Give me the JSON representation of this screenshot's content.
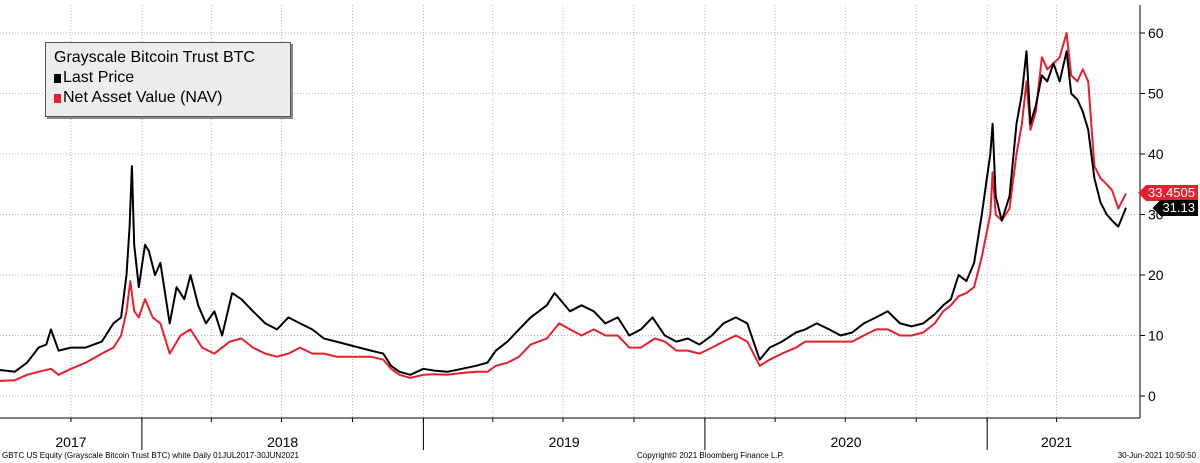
{
  "chart_data": {
    "type": "line",
    "title": "Grayscale Bitcoin Trust BTC",
    "ylim": [
      -4,
      65
    ],
    "y_ticks": [
      0,
      10,
      20,
      30,
      40,
      50,
      60
    ],
    "y_tick_labels": [
      "0",
      "10",
      "20",
      "30",
      "40",
      "50",
      "60"
    ],
    "x_range": [
      "2017-07-01",
      "2021-06-30"
    ],
    "x_tick_labels": [
      "2017",
      "2018",
      "2019",
      "2020",
      "2021"
    ],
    "grid": true,
    "legend_position": "top-left",
    "series": [
      {
        "name": "Last Price",
        "color": "#000000",
        "last_value_label": "31.13",
        "points": [
          [
            "2017-07-01",
            4.3
          ],
          [
            "2017-07-20",
            4.0
          ],
          [
            "2017-08-05",
            5.5
          ],
          [
            "2017-08-20",
            8.0
          ],
          [
            "2017-08-30",
            8.5
          ],
          [
            "2017-09-05",
            11.0
          ],
          [
            "2017-09-15",
            7.5
          ],
          [
            "2017-10-01",
            8.0
          ],
          [
            "2017-10-20",
            8.0
          ],
          [
            "2017-11-10",
            9.0
          ],
          [
            "2017-11-25",
            12.0
          ],
          [
            "2017-12-05",
            13.0
          ],
          [
            "2017-12-12",
            20.0
          ],
          [
            "2017-12-16",
            28.0
          ],
          [
            "2017-12-19",
            38.0
          ],
          [
            "2017-12-22",
            25.0
          ],
          [
            "2017-12-28",
            18.0
          ],
          [
            "2018-01-05",
            25.0
          ],
          [
            "2018-01-10",
            24.0
          ],
          [
            "2018-01-18",
            20.0
          ],
          [
            "2018-01-25",
            22.0
          ],
          [
            "2018-02-06",
            12.0
          ],
          [
            "2018-02-15",
            18.0
          ],
          [
            "2018-02-25",
            16.0
          ],
          [
            "2018-03-05",
            20.0
          ],
          [
            "2018-03-15",
            15.0
          ],
          [
            "2018-03-25",
            12.0
          ],
          [
            "2018-04-05",
            14.0
          ],
          [
            "2018-04-15",
            10.0
          ],
          [
            "2018-04-28",
            17.0
          ],
          [
            "2018-05-10",
            16.0
          ],
          [
            "2018-05-25",
            14.0
          ],
          [
            "2018-06-10",
            12.0
          ],
          [
            "2018-06-25",
            11.0
          ],
          [
            "2018-07-10",
            13.0
          ],
          [
            "2018-07-25",
            12.0
          ],
          [
            "2018-08-10",
            11.0
          ],
          [
            "2018-08-25",
            9.5
          ],
          [
            "2018-09-10",
            9.0
          ],
          [
            "2018-09-25",
            8.5
          ],
          [
            "2018-10-10",
            8.0
          ],
          [
            "2018-10-25",
            7.5
          ],
          [
            "2018-11-10",
            7.0
          ],
          [
            "2018-11-20",
            5.0
          ],
          [
            "2018-12-01",
            4.0
          ],
          [
            "2018-12-15",
            3.5
          ],
          [
            "2019-01-01",
            4.5
          ],
          [
            "2019-01-15",
            4.2
          ],
          [
            "2019-02-01",
            4.0
          ],
          [
            "2019-02-20",
            4.5
          ],
          [
            "2019-03-10",
            5.0
          ],
          [
            "2019-03-25",
            5.5
          ],
          [
            "2019-04-05",
            7.5
          ],
          [
            "2019-04-20",
            9.0
          ],
          [
            "2019-05-05",
            11.0
          ],
          [
            "2019-05-20",
            13.0
          ],
          [
            "2019-06-10",
            15.0
          ],
          [
            "2019-06-20",
            17.0
          ],
          [
            "2019-06-27",
            16.0
          ],
          [
            "2019-07-10",
            14.0
          ],
          [
            "2019-07-25",
            15.0
          ],
          [
            "2019-08-10",
            14.0
          ],
          [
            "2019-08-25",
            12.0
          ],
          [
            "2019-09-10",
            13.0
          ],
          [
            "2019-09-25",
            10.0
          ],
          [
            "2019-10-10",
            11.0
          ],
          [
            "2019-10-25",
            13.0
          ],
          [
            "2019-11-10",
            10.0
          ],
          [
            "2019-11-25",
            9.0
          ],
          [
            "2019-12-10",
            9.5
          ],
          [
            "2019-12-25",
            8.5
          ],
          [
            "2020-01-10",
            10.0
          ],
          [
            "2020-01-25",
            12.0
          ],
          [
            "2020-02-10",
            13.0
          ],
          [
            "2020-02-25",
            12.0
          ],
          [
            "2020-03-12",
            6.0
          ],
          [
            "2020-03-25",
            8.0
          ],
          [
            "2020-04-10",
            9.0
          ],
          [
            "2020-04-28",
            10.5
          ],
          [
            "2020-05-10",
            11.0
          ],
          [
            "2020-05-25",
            12.0
          ],
          [
            "2020-06-10",
            11.0
          ],
          [
            "2020-06-25",
            10.0
          ],
          [
            "2020-07-10",
            10.5
          ],
          [
            "2020-07-25",
            12.0
          ],
          [
            "2020-08-10",
            13.0
          ],
          [
            "2020-08-25",
            14.0
          ],
          [
            "2020-09-10",
            12.0
          ],
          [
            "2020-09-25",
            11.5
          ],
          [
            "2020-10-10",
            12.0
          ],
          [
            "2020-10-25",
            13.5
          ],
          [
            "2020-11-05",
            15.0
          ],
          [
            "2020-11-15",
            16.0
          ],
          [
            "2020-11-25",
            20.0
          ],
          [
            "2020-12-05",
            19.0
          ],
          [
            "2020-12-15",
            22.0
          ],
          [
            "2020-12-25",
            30.0
          ],
          [
            "2021-01-05",
            40.0
          ],
          [
            "2021-01-08",
            45.0
          ],
          [
            "2021-01-12",
            33.0
          ],
          [
            "2021-01-20",
            29.0
          ],
          [
            "2021-01-30",
            33.0
          ],
          [
            "2021-02-08",
            45.0
          ],
          [
            "2021-02-15",
            50.0
          ],
          [
            "2021-02-21",
            57.0
          ],
          [
            "2021-02-26",
            45.0
          ],
          [
            "2021-03-05",
            48.0
          ],
          [
            "2021-03-13",
            53.0
          ],
          [
            "2021-03-20",
            52.0
          ],
          [
            "2021-03-28",
            55.0
          ],
          [
            "2021-04-05",
            52.0
          ],
          [
            "2021-04-14",
            57.0
          ],
          [
            "2021-04-20",
            50.0
          ],
          [
            "2021-04-28",
            49.0
          ],
          [
            "2021-05-05",
            47.0
          ],
          [
            "2021-05-12",
            44.0
          ],
          [
            "2021-05-20",
            36.0
          ],
          [
            "2021-05-28",
            32.0
          ],
          [
            "2021-06-05",
            30.0
          ],
          [
            "2021-06-12",
            29.0
          ],
          [
            "2021-06-20",
            28.0
          ],
          [
            "2021-06-30",
            31.13
          ]
        ]
      },
      {
        "name": "Net Asset Value (NAV)",
        "color": "#e8202e",
        "last_value_label": "33.4505",
        "points": [
          [
            "2017-07-01",
            2.5
          ],
          [
            "2017-07-20",
            2.6
          ],
          [
            "2017-08-05",
            3.5
          ],
          [
            "2017-08-20",
            4.0
          ],
          [
            "2017-09-05",
            4.5
          ],
          [
            "2017-09-15",
            3.5
          ],
          [
            "2017-10-01",
            4.5
          ],
          [
            "2017-10-20",
            5.5
          ],
          [
            "2017-11-10",
            7.0
          ],
          [
            "2017-11-25",
            8.0
          ],
          [
            "2017-12-05",
            10.0
          ],
          [
            "2017-12-12",
            14.0
          ],
          [
            "2017-12-17",
            19.0
          ],
          [
            "2017-12-22",
            14.0
          ],
          [
            "2017-12-28",
            13.0
          ],
          [
            "2018-01-05",
            16.0
          ],
          [
            "2018-01-15",
            13.0
          ],
          [
            "2018-01-25",
            12.0
          ],
          [
            "2018-02-06",
            7.0
          ],
          [
            "2018-02-20",
            10.0
          ],
          [
            "2018-03-05",
            11.0
          ],
          [
            "2018-03-20",
            8.0
          ],
          [
            "2018-04-05",
            7.0
          ],
          [
            "2018-04-25",
            9.0
          ],
          [
            "2018-05-10",
            9.5
          ],
          [
            "2018-05-25",
            8.0
          ],
          [
            "2018-06-10",
            7.0
          ],
          [
            "2018-06-25",
            6.5
          ],
          [
            "2018-07-10",
            7.0
          ],
          [
            "2018-07-25",
            8.0
          ],
          [
            "2018-08-10",
            7.0
          ],
          [
            "2018-08-25",
            7.0
          ],
          [
            "2018-09-10",
            6.5
          ],
          [
            "2018-09-25",
            6.5
          ],
          [
            "2018-10-10",
            6.5
          ],
          [
            "2018-10-25",
            6.5
          ],
          [
            "2018-11-10",
            6.0
          ],
          [
            "2018-11-20",
            4.5
          ],
          [
            "2018-12-01",
            3.5
          ],
          [
            "2018-12-15",
            3.0
          ],
          [
            "2019-01-01",
            3.5
          ],
          [
            "2019-01-15",
            3.6
          ],
          [
            "2019-02-01",
            3.5
          ],
          [
            "2019-02-20",
            3.8
          ],
          [
            "2019-03-10",
            4.0
          ],
          [
            "2019-03-25",
            4.0
          ],
          [
            "2019-04-05",
            5.0
          ],
          [
            "2019-04-20",
            5.5
          ],
          [
            "2019-05-05",
            6.5
          ],
          [
            "2019-05-20",
            8.5
          ],
          [
            "2019-06-10",
            9.5
          ],
          [
            "2019-06-26",
            12.0
          ],
          [
            "2019-07-10",
            11.0
          ],
          [
            "2019-07-25",
            10.0
          ],
          [
            "2019-08-10",
            11.0
          ],
          [
            "2019-08-25",
            10.0
          ],
          [
            "2019-09-10",
            10.0
          ],
          [
            "2019-09-25",
            8.0
          ],
          [
            "2019-10-10",
            8.0
          ],
          [
            "2019-10-28",
            9.5
          ],
          [
            "2019-11-10",
            9.0
          ],
          [
            "2019-11-25",
            7.5
          ],
          [
            "2019-12-10",
            7.5
          ],
          [
            "2019-12-25",
            7.0
          ],
          [
            "2020-01-10",
            8.0
          ],
          [
            "2020-01-25",
            9.0
          ],
          [
            "2020-02-10",
            10.0
          ],
          [
            "2020-02-25",
            9.0
          ],
          [
            "2020-03-12",
            5.0
          ],
          [
            "2020-03-25",
            6.0
          ],
          [
            "2020-04-10",
            7.0
          ],
          [
            "2020-04-28",
            8.0
          ],
          [
            "2020-05-10",
            9.0
          ],
          [
            "2020-05-25",
            9.0
          ],
          [
            "2020-06-10",
            9.0
          ],
          [
            "2020-06-25",
            9.0
          ],
          [
            "2020-07-10",
            9.0
          ],
          [
            "2020-07-25",
            10.0
          ],
          [
            "2020-08-10",
            11.0
          ],
          [
            "2020-08-25",
            11.0
          ],
          [
            "2020-09-10",
            10.0
          ],
          [
            "2020-09-25",
            10.0
          ],
          [
            "2020-10-10",
            10.5
          ],
          [
            "2020-10-25",
            12.0
          ],
          [
            "2020-11-05",
            14.0
          ],
          [
            "2020-11-15",
            15.0
          ],
          [
            "2020-11-25",
            16.5
          ],
          [
            "2020-12-05",
            17.0
          ],
          [
            "2020-12-15",
            18.0
          ],
          [
            "2020-12-25",
            23.0
          ],
          [
            "2021-01-05",
            30.0
          ],
          [
            "2021-01-08",
            37.0
          ],
          [
            "2021-01-12",
            30.0
          ],
          [
            "2021-01-20",
            29.0
          ],
          [
            "2021-01-30",
            31.0
          ],
          [
            "2021-02-08",
            40.0
          ],
          [
            "2021-02-15",
            45.0
          ],
          [
            "2021-02-21",
            52.0
          ],
          [
            "2021-02-26",
            44.0
          ],
          [
            "2021-03-05",
            47.0
          ],
          [
            "2021-03-13",
            56.0
          ],
          [
            "2021-03-20",
            54.0
          ],
          [
            "2021-03-28",
            55.0
          ],
          [
            "2021-04-05",
            56.0
          ],
          [
            "2021-04-14",
            60.0
          ],
          [
            "2021-04-20",
            53.0
          ],
          [
            "2021-04-28",
            52.0
          ],
          [
            "2021-05-05",
            54.0
          ],
          [
            "2021-05-12",
            52.0
          ],
          [
            "2021-05-20",
            38.0
          ],
          [
            "2021-05-28",
            36.0
          ],
          [
            "2021-06-05",
            35.0
          ],
          [
            "2021-06-12",
            34.0
          ],
          [
            "2021-06-20",
            31.0
          ],
          [
            "2021-06-30",
            33.4505
          ]
        ]
      }
    ]
  },
  "footer": {
    "left": "GBTC US Equity (Grayscale Bitcoin Trust BTC) white  Daily 01JUL2017-30JUN2021",
    "center": "Copyright© 2021 Bloomberg Finance L.P.",
    "right": "30-Jun-2021 10:50:50"
  }
}
